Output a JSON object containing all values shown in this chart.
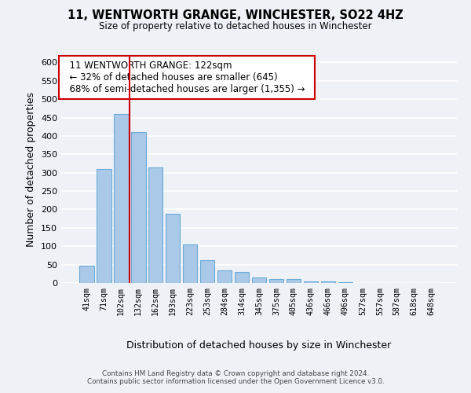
{
  "title": "11, WENTWORTH GRANGE, WINCHESTER, SO22 4HZ",
  "subtitle": "Size of property relative to detached houses in Winchester",
  "xlabel": "Distribution of detached houses by size in Winchester",
  "ylabel": "Number of detached properties",
  "bar_labels": [
    "41sqm",
    "71sqm",
    "102sqm",
    "132sqm",
    "162sqm",
    "193sqm",
    "223sqm",
    "253sqm",
    "284sqm",
    "314sqm",
    "345sqm",
    "375sqm",
    "405sqm",
    "436sqm",
    "466sqm",
    "496sqm",
    "527sqm",
    "557sqm",
    "587sqm",
    "618sqm",
    "648sqm"
  ],
  "bar_values": [
    47,
    310,
    460,
    410,
    315,
    188,
    105,
    63,
    35,
    30,
    14,
    10,
    10,
    5,
    5,
    3,
    1,
    1,
    0,
    0,
    1
  ],
  "bar_color": "#aac8e8",
  "bar_edge_color": "#6aaad4",
  "vline_color": "#cc0000",
  "ylim": [
    0,
    620
  ],
  "yticks": [
    0,
    50,
    100,
    150,
    200,
    250,
    300,
    350,
    400,
    450,
    500,
    550,
    600
  ],
  "annotation_title": "11 WENTWORTH GRANGE: 122sqm",
  "annotation_line1": "← 32% of detached houses are smaller (645)",
  "annotation_line2": "68% of semi-detached houses are larger (1,355) →",
  "annotation_box_color": "#ffffff",
  "annotation_box_edge": "#cc0000",
  "footer_line1": "Contains HM Land Registry data © Crown copyright and database right 2024.",
  "footer_line2": "Contains public sector information licensed under the Open Government Licence v3.0.",
  "background_color": "#eef2f7",
  "grid_color": "#ffffff"
}
